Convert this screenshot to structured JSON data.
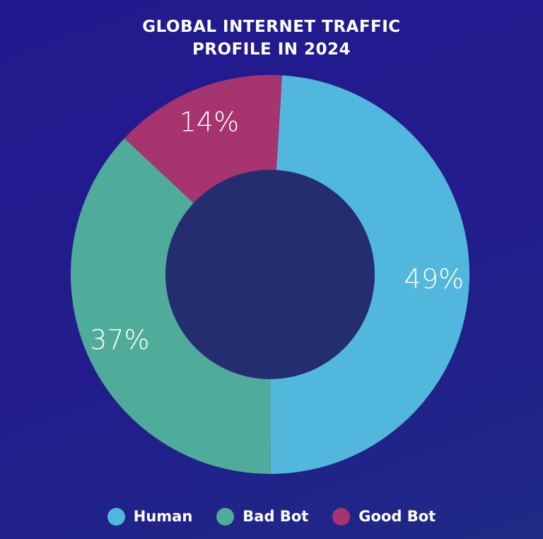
{
  "title_lines": [
    "GLOBAL INTERNET TRAFFIC",
    "PROFILE IN 2024"
  ],
  "colors": {
    "human": "#52b7dc",
    "bad_bot": "#4fab9a",
    "good_bot": "#a5346f",
    "hole": "#242d70"
  },
  "chart_data": {
    "type": "pie",
    "variant": "donut",
    "title": "GLOBAL INTERNET TRAFFIC PROFILE IN 2024",
    "slices": [
      {
        "name": "Human",
        "value": 49,
        "label": "49%",
        "color": "#52b7dc"
      },
      {
        "name": "Bad Bot",
        "value": 37,
        "label": "37%",
        "color": "#4fab9a"
      },
      {
        "name": "Good Bot",
        "value": 14,
        "label": "14%",
        "color": "#a5346f"
      }
    ],
    "legend_placement": "bottom"
  },
  "legend": [
    {
      "label": "Human",
      "color": "#52b7dc"
    },
    {
      "label": "Bad Bot",
      "color": "#4fab9a"
    },
    {
      "label": "Good Bot",
      "color": "#a5346f"
    }
  ]
}
